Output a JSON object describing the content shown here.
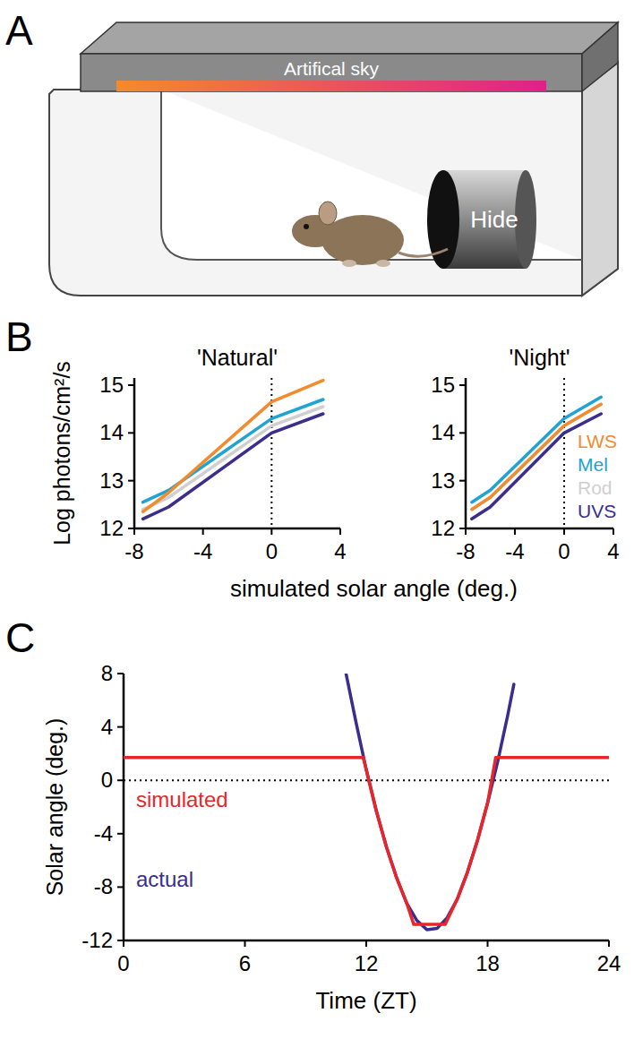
{
  "panel_letters": [
    "A",
    "B",
    "C"
  ],
  "diagram": {
    "sky_label": "Artifical sky",
    "hide_label": "Hide"
  },
  "chart_data": [
    {
      "type": "line",
      "title": "'Natural'",
      "xlabel": "simulated solar angle (deg.)",
      "ylabel": "Log photons/cm²/s",
      "x": [
        -7.5,
        -6,
        0,
        3
      ],
      "xlim": [
        -8,
        4
      ],
      "xticks": [
        -8,
        -4,
        0,
        4
      ],
      "ylim": [
        12,
        15.15
      ],
      "yticks": [
        12,
        13,
        14,
        15
      ],
      "reference_x": 0,
      "series": [
        {
          "name": "LWS",
          "color": "#f28a2e",
          "values": [
            12.35,
            12.75,
            14.65,
            15.1
          ]
        },
        {
          "name": "Mel",
          "color": "#1ea3d3",
          "values": [
            12.55,
            12.8,
            14.3,
            14.7
          ]
        },
        {
          "name": "Rod",
          "color": "#cfcfcf",
          "values": [
            12.4,
            12.65,
            14.15,
            14.55
          ]
        },
        {
          "name": "UVS",
          "color": "#3b2d8c",
          "values": [
            12.2,
            12.45,
            14.0,
            14.4
          ]
        }
      ]
    },
    {
      "type": "line",
      "title": "'Night'",
      "x": [
        -7.5,
        -6,
        0,
        3
      ],
      "xlim": [
        -8,
        4
      ],
      "xticks": [
        -8,
        -4,
        0,
        4
      ],
      "ylim": [
        12,
        15.15
      ],
      "yticks": [
        12,
        13,
        14,
        15
      ],
      "reference_x": 0,
      "legend": "right",
      "series": [
        {
          "name": "LWS",
          "color": "#f28a2e",
          "values": [
            12.4,
            12.65,
            14.15,
            14.6
          ]
        },
        {
          "name": "Mel",
          "color": "#1ea3d3",
          "values": [
            12.55,
            12.8,
            14.3,
            14.75
          ]
        },
        {
          "name": "Rod",
          "color": "#cfcfcf",
          "values": [
            12.4,
            12.65,
            14.15,
            14.6
          ]
        },
        {
          "name": "UVS",
          "color": "#3b2d8c",
          "values": [
            12.2,
            12.45,
            14.0,
            14.4
          ]
        }
      ]
    },
    {
      "type": "line",
      "xlabel": "Time (ZT)",
      "ylabel": "Solar angle (deg.)",
      "xlim": [
        0,
        24
      ],
      "xticks": [
        0,
        6,
        12,
        18,
        24
      ],
      "ylim": [
        -12,
        8
      ],
      "yticks": [
        -12,
        -8,
        -4,
        0,
        4,
        8
      ],
      "reference_y": 0,
      "legend": "left",
      "series": [
        {
          "name": "simulated",
          "color": "#e8262a",
          "x": [
            0,
            11.85,
            12,
            12.5,
            13,
            13.5,
            14,
            14.35,
            15.9,
            16.5,
            17,
            17.5,
            18,
            18.4,
            24
          ],
          "values": [
            1.7,
            1.7,
            0.8,
            -2.3,
            -5.0,
            -7.3,
            -9.2,
            -10.8,
            -10.8,
            -8.9,
            -6.9,
            -4.5,
            -1.7,
            1.7,
            1.7
          ]
        },
        {
          "name": "actual",
          "color": "#3b2d8f",
          "x": [
            11.0,
            11.5,
            12,
            12.5,
            13,
            13.5,
            14,
            14.5,
            15,
            15.5,
            16,
            16.5,
            17,
            17.5,
            18,
            18.5,
            19,
            19.3
          ],
          "values": [
            8,
            4.3,
            0.8,
            -2.3,
            -5.0,
            -7.3,
            -9.2,
            -10.5,
            -11.2,
            -11.1,
            -10.3,
            -8.9,
            -6.9,
            -4.5,
            -1.7,
            1.4,
            4.9,
            7.2
          ]
        }
      ]
    }
  ]
}
